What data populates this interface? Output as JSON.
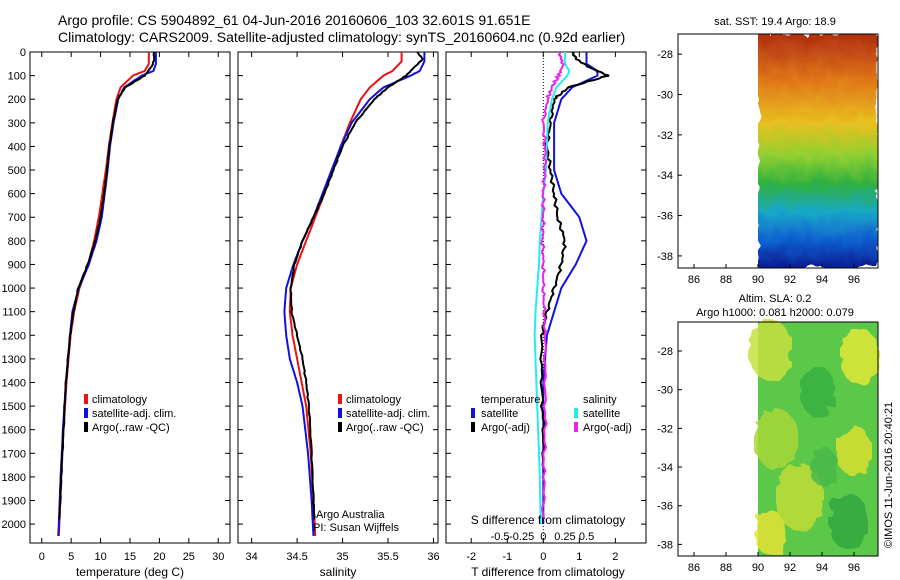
{
  "header": {
    "line1": "Argo profile: CS 5904892_61 04-Jun-2016 20160606_103 32.601S 91.651E",
    "line2": "Climatology: CARS2009. Satellite-adjusted climatology: synTS_20160604.nc (0.92d earlier)"
  },
  "colors": {
    "climatology": "#ee1111",
    "satellite": "#1111dd",
    "argo": "#000000",
    "s_satellite": "#22eeee",
    "s_argo": "#ee22ee"
  },
  "chart_data": [
    {
      "type": "line",
      "name": "temperature-panel",
      "xlabel": "temperature (deg C)",
      "ylabel": "",
      "xlim": [
        -2,
        32
      ],
      "ylim": [
        2080,
        0
      ],
      "xticks": [
        "0",
        "5",
        "10",
        "15",
        "20",
        "25",
        "30"
      ],
      "xtick_values": [
        0,
        5,
        10,
        15,
        20,
        25,
        30
      ],
      "yticks": [
        "0",
        "100",
        "200",
        "300",
        "400",
        "500",
        "600",
        "700",
        "800",
        "900",
        "1000",
        "1100",
        "1200",
        "1300",
        "1400",
        "1500",
        "1600",
        "1700",
        "1800",
        "1900",
        "2000"
      ],
      "ytick_values": [
        0,
        100,
        200,
        300,
        400,
        500,
        600,
        700,
        800,
        900,
        1000,
        1100,
        1200,
        1300,
        1400,
        1500,
        1600,
        1700,
        1800,
        1900,
        2000
      ],
      "legend": [
        "climatology",
        "satellite-adj. clim.",
        "Argo(..raw -QC)"
      ],
      "series": [
        {
          "name": "climatology",
          "depth": [
            0,
            50,
            80,
            100,
            150,
            200,
            300,
            400,
            500,
            600,
            700,
            800,
            900,
            1000,
            1100,
            1200,
            1400,
            1600,
            1800,
            2000,
            2050
          ],
          "values": [
            18.2,
            18.2,
            17.5,
            15.5,
            13.4,
            12.7,
            12.0,
            11.4,
            10.9,
            10.3,
            9.7,
            8.9,
            7.9,
            6.4,
            5.5,
            4.9,
            4.2,
            3.7,
            3.3,
            3.0,
            2.9
          ]
        },
        {
          "name": "satellite-adj. clim.",
          "depth": [
            0,
            50,
            80,
            100,
            150,
            200,
            300,
            400,
            500,
            600,
            700,
            800,
            900,
            1000,
            1100,
            1200,
            1400,
            1600,
            1800,
            2000,
            2050
          ],
          "values": [
            19.4,
            19.4,
            19.0,
            17.0,
            14.0,
            13.0,
            12.2,
            11.6,
            11.2,
            10.7,
            10.2,
            9.3,
            8.0,
            6.3,
            5.2,
            4.8,
            4.1,
            3.6,
            3.2,
            2.9,
            2.8
          ]
        },
        {
          "name": "Argo(..raw -QC)",
          "depth": [
            0,
            30,
            60,
            100,
            150,
            200,
            300,
            400,
            500,
            600,
            700,
            800,
            900,
            1000,
            1100,
            1200,
            1400,
            1600,
            1800,
            1980
          ],
          "values": [
            19.0,
            19.1,
            18.7,
            17.5,
            14.2,
            12.9,
            12.1,
            11.5,
            11.1,
            10.6,
            10.0,
            9.1,
            7.8,
            6.2,
            5.4,
            4.8,
            4.1,
            3.7,
            3.3,
            3.0
          ]
        }
      ]
    },
    {
      "type": "line",
      "name": "salinity-panel",
      "xlabel": "salinity",
      "xlim": [
        33.85,
        36.05
      ],
      "ylim": [
        2080,
        0
      ],
      "xticks": [
        "34",
        "34.5",
        "35",
        "35.5",
        "36"
      ],
      "xtick_values": [
        34,
        34.5,
        35,
        35.5,
        36
      ],
      "legend": [
        "climatology",
        "satellite-adj. clim.",
        "Argo(..raw -QC)"
      ],
      "annotation": [
        "Argo Australia",
        "PI: Susan Wijffels"
      ],
      "series": [
        {
          "name": "climatology",
          "depth": [
            0,
            40,
            80,
            100,
            150,
            200,
            300,
            400,
            500,
            600,
            700,
            800,
            900,
            1000,
            1100,
            1200,
            1300,
            1400,
            1500,
            1700,
            1900,
            2050
          ],
          "values": [
            35.65,
            35.65,
            35.55,
            35.45,
            35.3,
            35.2,
            35.08,
            34.98,
            34.89,
            34.8,
            34.7,
            34.6,
            34.5,
            34.43,
            34.42,
            34.45,
            34.5,
            34.55,
            34.6,
            34.65,
            34.68,
            34.7
          ]
        },
        {
          "name": "satellite-adj. clim.",
          "depth": [
            0,
            40,
            80,
            100,
            150,
            200,
            300,
            400,
            500,
            600,
            700,
            800,
            900,
            1000,
            1100,
            1200,
            1300,
            1400,
            1500,
            1700,
            1900,
            2050
          ],
          "values": [
            35.9,
            35.9,
            35.85,
            35.75,
            35.45,
            35.3,
            35.1,
            34.98,
            34.88,
            34.78,
            34.68,
            34.56,
            34.46,
            34.38,
            34.36,
            34.38,
            34.42,
            34.5,
            34.56,
            34.62,
            34.66,
            34.68
          ]
        },
        {
          "name": "Argo(..raw -QC)",
          "depth": [
            0,
            30,
            60,
            100,
            150,
            200,
            300,
            400,
            500,
            600,
            700,
            800,
            900,
            1000,
            1100,
            1200,
            1300,
            1400,
            1500,
            1700,
            1900,
            1980
          ],
          "values": [
            35.82,
            35.88,
            35.8,
            35.7,
            35.5,
            35.35,
            35.14,
            35.0,
            34.9,
            34.8,
            34.68,
            34.56,
            34.47,
            34.43,
            34.44,
            34.5,
            34.56,
            34.6,
            34.63,
            34.66,
            34.68,
            34.69
          ]
        }
      ]
    },
    {
      "type": "line",
      "name": "difference-panel",
      "xlabel": "T difference from climatology",
      "xlabel_top": "S difference from climatology",
      "xlim": [
        -2.7,
        2.85
      ],
      "ylim": [
        2080,
        0
      ],
      "xticks": [
        "-2",
        "-1",
        "0",
        "1",
        "2"
      ],
      "xtick_values": [
        -2,
        -1,
        0,
        1,
        2
      ],
      "sticks": [
        "-0.5",
        "-0.25",
        "0",
        "0.25",
        "0.5"
      ],
      "stick_values": [
        -0.5,
        -0.25,
        0,
        0.25,
        0.5
      ],
      "legend_titles": [
        "temperature",
        "salinity"
      ],
      "legend": [
        "satellite",
        "Argo(-adj)",
        "satellite",
        "Argo(-adj)"
      ],
      "series": [
        {
          "name": "T satellite",
          "depth": [
            0,
            50,
            80,
            100,
            150,
            200,
            300,
            400,
            500,
            600,
            700,
            800,
            900,
            1000,
            1100,
            1200,
            1400,
            1600,
            1800,
            2000
          ],
          "values": [
            1.2,
            1.2,
            1.5,
            1.5,
            0.8,
            0.5,
            0.3,
            0.3,
            0.3,
            0.5,
            1.0,
            1.2,
            0.9,
            0.5,
            0.3,
            0.1,
            0.0,
            0.0,
            0.0,
            0.0
          ]
        },
        {
          "name": "T Argo(-adj)",
          "depth": [
            0,
            30,
            60,
            100,
            150,
            200,
            300,
            400,
            500,
            600,
            700,
            800,
            900,
            1000,
            1100,
            1200,
            1400,
            1600,
            1800,
            1980
          ],
          "values": [
            0.8,
            0.9,
            1.2,
            1.8,
            0.7,
            0.3,
            0.2,
            0.1,
            0.2,
            0.3,
            0.4,
            0.6,
            0.5,
            0.3,
            0.1,
            -0.05,
            -0.05,
            0.0,
            0.0,
            0.0
          ]
        },
        {
          "name": "S satellite",
          "depth": [
            0,
            50,
            80,
            100,
            150,
            200,
            300,
            400,
            500,
            600,
            700,
            800,
            900,
            1000,
            1100,
            1200,
            1400,
            1600,
            1800,
            2000
          ],
          "values": [
            0.25,
            0.25,
            0.3,
            0.28,
            0.15,
            0.1,
            0.05,
            0.04,
            0.03,
            0.0,
            -0.02,
            -0.04,
            -0.05,
            -0.07,
            -0.09,
            -0.1,
            -0.08,
            -0.06,
            -0.04,
            -0.03
          ]
        },
        {
          "name": "S Argo(-adj)",
          "depth": [
            0,
            30,
            60,
            100,
            150,
            200,
            300,
            400,
            500,
            600,
            700,
            800,
            900,
            1000,
            1100,
            1200,
            1400,
            1600,
            1800,
            1980
          ],
          "values": [
            0.18,
            0.2,
            0.22,
            0.18,
            0.1,
            0.05,
            0.0,
            0.02,
            0.02,
            0.0,
            0.0,
            -0.01,
            0.0,
            0.0,
            0.01,
            0.02,
            0.02,
            0.02,
            0.0,
            0.0
          ]
        }
      ]
    },
    {
      "type": "heatmap",
      "name": "sst-map",
      "title": "sat. SST: 19.4  Argo: 18.9",
      "xlim": [
        85,
        97.5
      ],
      "ylim": [
        -38.6,
        -27
      ],
      "xticks": [
        "86",
        "88",
        "90",
        "92",
        "94",
        "96"
      ],
      "xtick_values": [
        86,
        88,
        90,
        92,
        94,
        96
      ],
      "yticks": [
        "-28",
        "-30",
        "-32",
        "-34",
        "-36",
        "-38"
      ],
      "ytick_values": [
        -28,
        -30,
        -32,
        -34,
        -36,
        -38
      ],
      "data_lon_range": [
        90,
        97.5
      ]
    },
    {
      "type": "heatmap",
      "name": "sla-map",
      "title": "Altim. SLA: 0.2",
      "subtitle": "Argo h1000: 0.081  h2000: 0.079",
      "xlim": [
        85,
        97.5
      ],
      "ylim": [
        -38.6,
        -26.5
      ],
      "xticks": [
        "86",
        "88",
        "90",
        "92",
        "94",
        "96"
      ],
      "xtick_values": [
        86,
        88,
        90,
        92,
        94,
        96
      ],
      "yticks": [
        "-28",
        "-30",
        "-32",
        "-34",
        "-36",
        "-38"
      ],
      "ytick_values": [
        -28,
        -30,
        -32,
        -34,
        -36,
        -38
      ],
      "data_lon_range": [
        90,
        97.5
      ]
    }
  ],
  "footer": {
    "stamp": "©IMOS 11-Jun-2016 20:40:21"
  }
}
